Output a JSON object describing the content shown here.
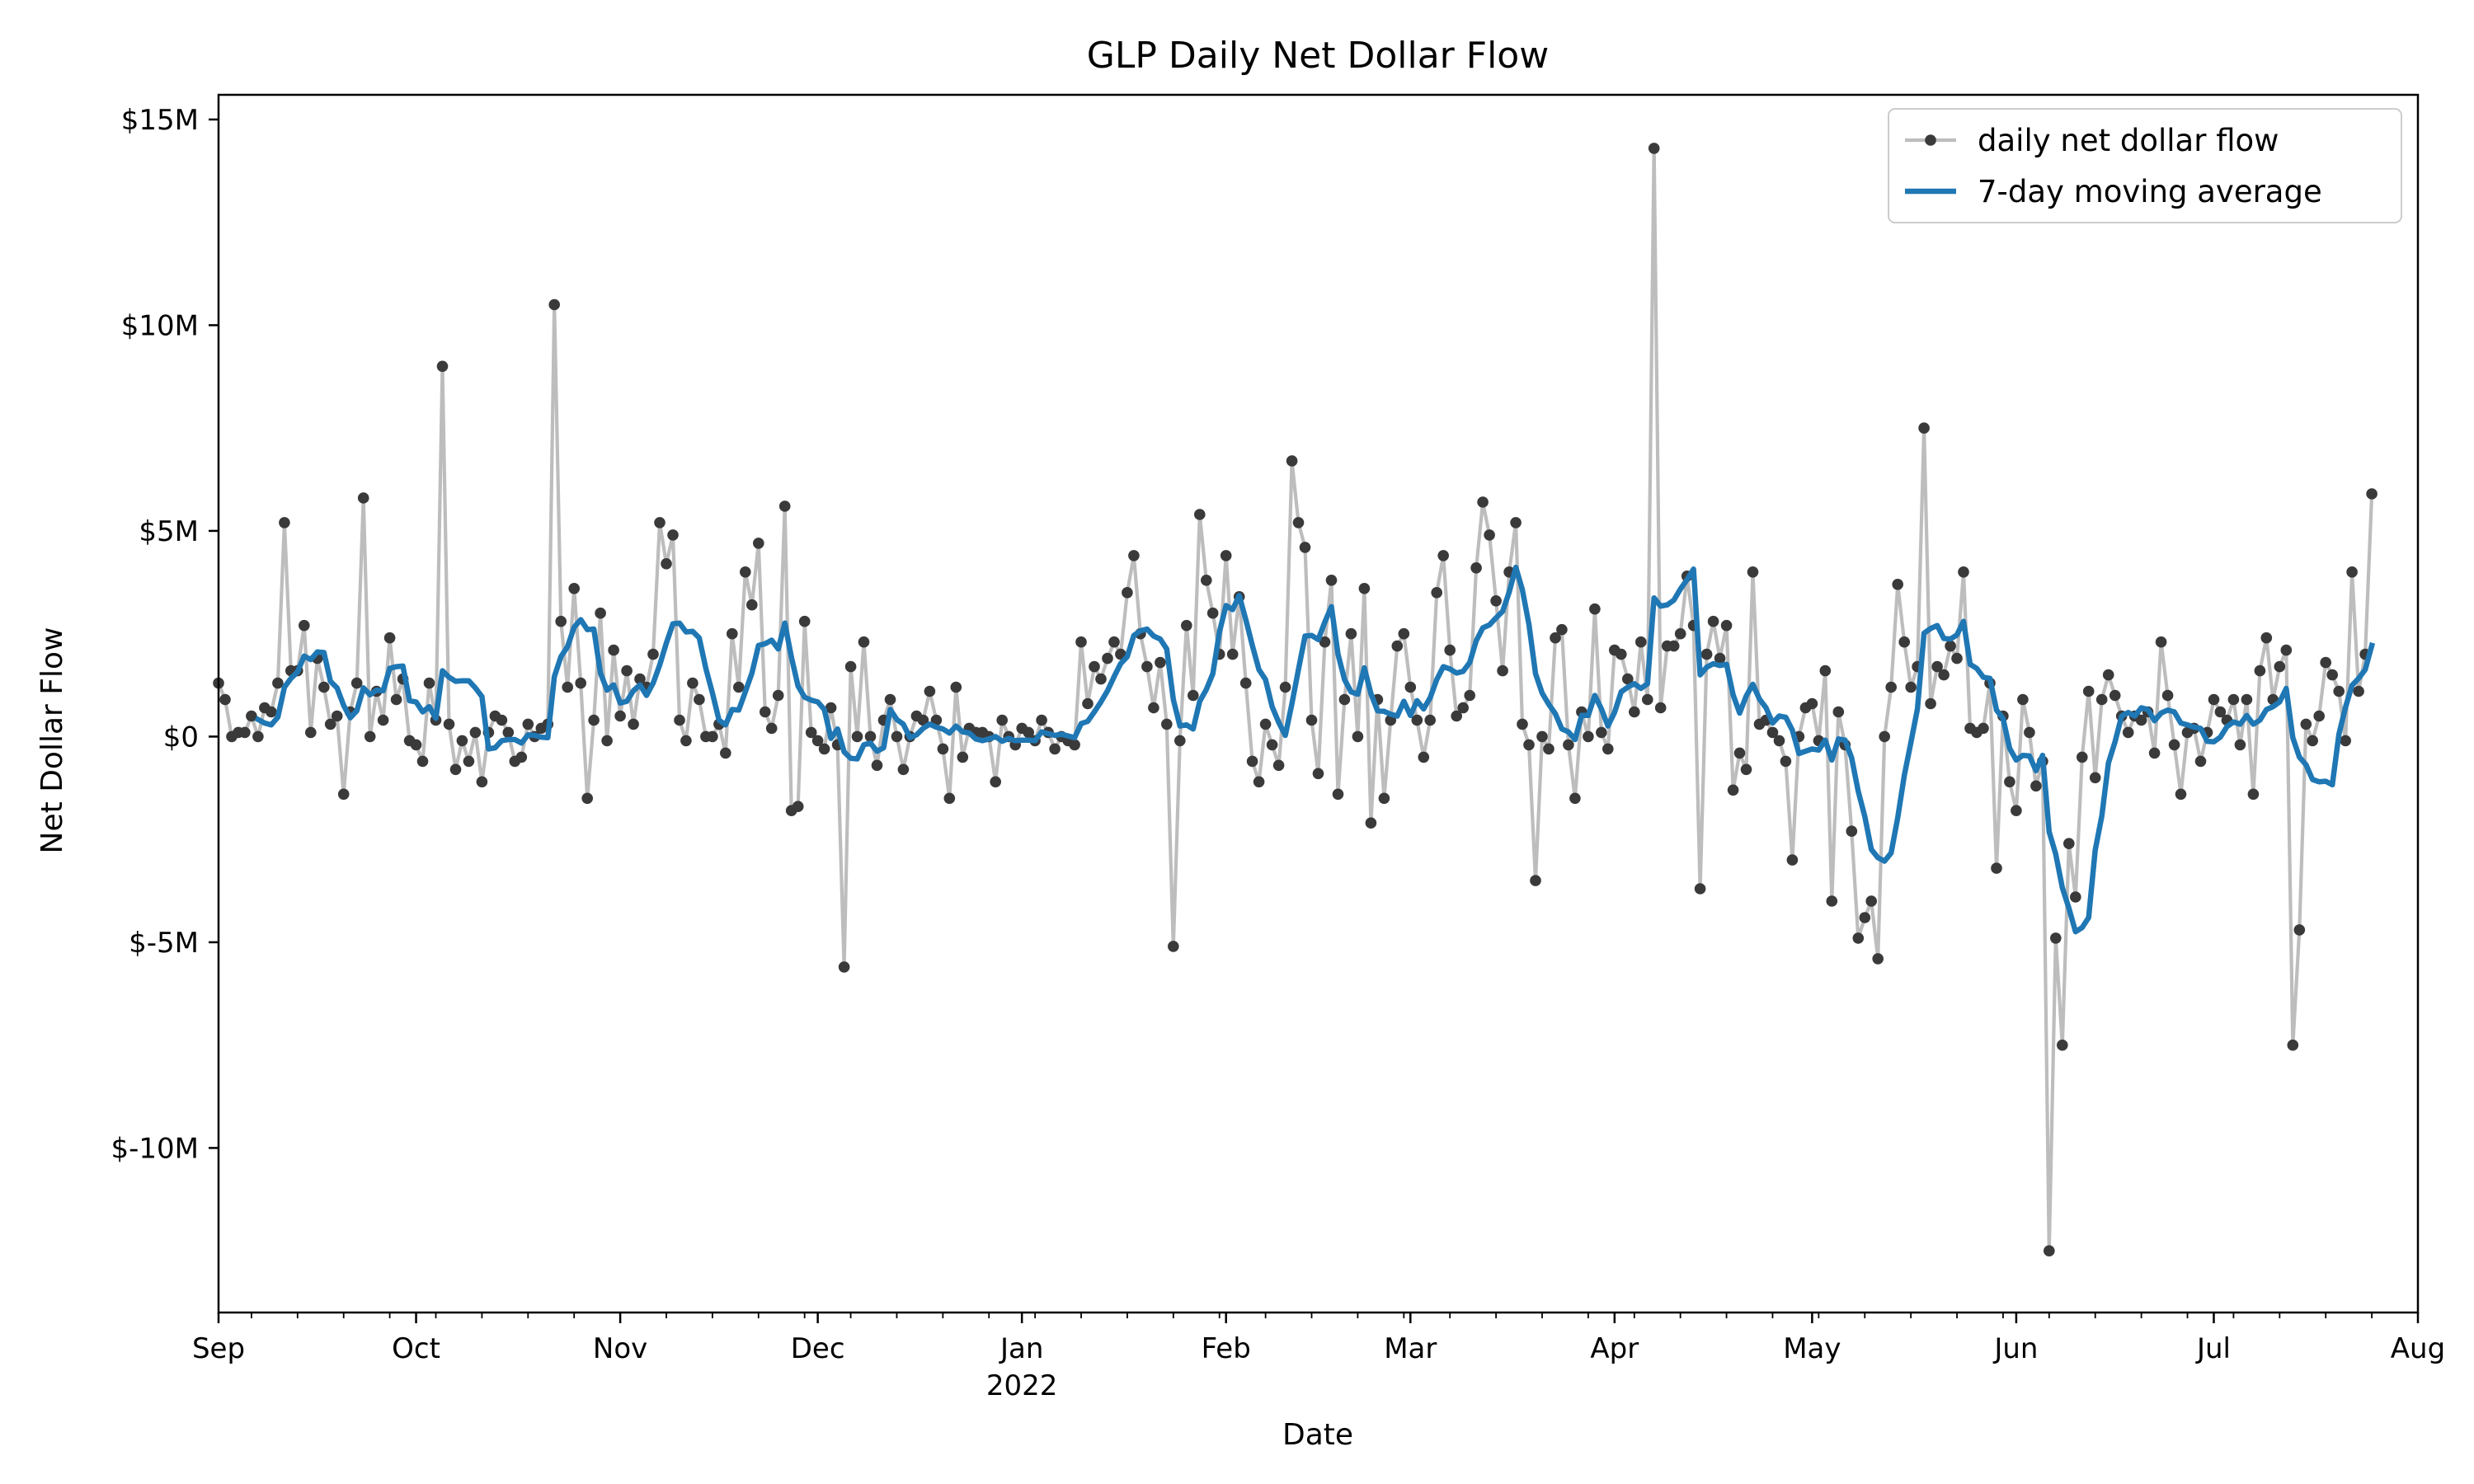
{
  "chart_data": {
    "type": "line",
    "title": "GLP Daily Net Dollar Flow",
    "xlabel": "Date",
    "ylabel": "Net Dollar Flow",
    "x_range": [
      "2021-09-01",
      "2022-08-01"
    ],
    "ylim": [
      -14000000,
      15600000
    ],
    "y_ticks": [
      {
        "value": 15000000,
        "label": "$15M"
      },
      {
        "value": 10000000,
        "label": "$10M"
      },
      {
        "value": 5000000,
        "label": "$5M"
      },
      {
        "value": 0,
        "label": "$0"
      },
      {
        "value": -5000000,
        "label": "$-5M"
      },
      {
        "value": -10000000,
        "label": "$-10M"
      }
    ],
    "x_ticks": [
      {
        "date": "2021-09-01",
        "label": "Sep"
      },
      {
        "date": "2021-10-01",
        "label": "Oct"
      },
      {
        "date": "2021-11-01",
        "label": "Nov"
      },
      {
        "date": "2021-12-01",
        "label": "Dec"
      },
      {
        "date": "2022-01-01",
        "label": "Jan",
        "sublabel": "2022"
      },
      {
        "date": "2022-02-01",
        "label": "Feb"
      },
      {
        "date": "2022-03-01",
        "label": "Mar"
      },
      {
        "date": "2022-04-01",
        "label": "Apr"
      },
      {
        "date": "2022-05-01",
        "label": "May"
      },
      {
        "date": "2022-06-01",
        "label": "Jun"
      },
      {
        "date": "2022-07-01",
        "label": "Jul"
      },
      {
        "date": "2022-08-01",
        "label": "Aug"
      }
    ],
    "grid": false,
    "legend_position": "top-right",
    "series": [
      {
        "name": "daily net dollar flow",
        "color": "#bdbdbd",
        "marker_color": "#3a3a3a",
        "style": "line-with-markers",
        "x_start": "2021-09-01",
        "x_step_days": 1,
        "values": [
          1.3,
          0.9,
          0.0,
          0.1,
          0.1,
          0.5,
          0.0,
          0.7,
          0.6,
          1.3,
          5.2,
          1.6,
          1.6,
          2.7,
          0.1,
          1.9,
          1.2,
          0.3,
          0.5,
          -1.4,
          0.6,
          1.3,
          5.8,
          0.0,
          1.1,
          0.4,
          2.4,
          0.9,
          1.4,
          -0.1,
          -0.2,
          -0.6,
          1.3,
          0.4,
          9.0,
          0.3,
          -0.8,
          -0.1,
          -0.6,
          0.1,
          -1.1,
          0.1,
          0.5,
          0.4,
          0.1,
          -0.6,
          -0.5,
          0.3,
          0.0,
          0.2,
          0.3,
          10.5,
          2.8,
          1.2,
          3.6,
          1.3,
          -1.5,
          0.4,
          3.0,
          -0.1,
          2.1,
          0.5,
          1.6,
          0.3,
          1.4,
          1.2,
          2.0,
          5.2,
          4.2,
          4.9,
          0.4,
          -0.1,
          1.3,
          0.9,
          0.0,
          0.0,
          0.3,
          -0.4,
          2.5,
          1.2,
          4.0,
          3.2,
          4.7,
          0.6,
          0.2,
          1.0,
          5.6,
          -1.8,
          -1.7,
          2.8,
          0.1,
          -0.1,
          -0.3,
          0.7,
          -0.2,
          -5.6,
          1.7,
          0.0,
          2.3,
          0.0,
          -0.7,
          0.4,
          0.9,
          0.0,
          -0.8,
          0.0,
          0.5,
          0.4,
          1.1,
          0.4,
          -0.3,
          -1.5,
          1.2,
          -0.5,
          0.2,
          0.1,
          0.1,
          0.0,
          -1.1,
          0.4,
          0.0,
          -0.2,
          0.2,
          0.1,
          -0.1,
          0.4,
          0.1,
          -0.3,
          0.0,
          -0.1,
          -0.2,
          2.3,
          0.8,
          1.7,
          1.4,
          1.9,
          2.3,
          2.0,
          3.5,
          4.4,
          2.5,
          1.7,
          0.7,
          1.8,
          0.3,
          -5.1,
          -0.1,
          2.7,
          1.0,
          5.4,
          3.8,
          3.0,
          2.0,
          4.4,
          2.0,
          3.4,
          1.3,
          -0.6,
          -1.1,
          0.3,
          -0.2,
          -0.7,
          1.2,
          6.7,
          5.2,
          4.6,
          0.4,
          -0.9,
          2.3,
          3.8,
          -1.4,
          0.9,
          2.5,
          0.0,
          3.6,
          -2.1,
          0.9,
          -1.5,
          0.4,
          2.2,
          2.5,
          1.2,
          0.4,
          -0.5,
          0.4,
          3.5,
          4.4,
          2.1,
          0.5,
          0.7,
          1.0,
          4.1,
          5.7,
          4.9,
          3.3,
          1.6,
          4.0,
          5.2,
          0.3,
          -0.2,
          -3.5,
          0.0,
          -0.3,
          2.4,
          2.6,
          -0.2,
          -1.5,
          0.6,
          0.0,
          3.1,
          0.1,
          -0.3,
          2.1,
          2.0,
          1.4,
          0.6,
          2.3,
          0.9,
          14.3,
          0.7,
          2.2,
          2.2,
          2.5,
          3.9,
          2.7,
          -3.7,
          2.0,
          2.8,
          1.9,
          2.7,
          -1.3,
          -0.4,
          -0.8,
          4.0,
          0.3,
          0.4,
          0.1,
          -0.1,
          -0.6,
          -3.0,
          0.0,
          0.7,
          0.8,
          -0.1,
          1.6,
          -4.0,
          0.6,
          -0.2,
          -2.3,
          -4.9,
          -4.4,
          -4.0,
          -5.4,
          0.0,
          1.2,
          3.7,
          2.3,
          1.2,
          1.7,
          7.5,
          0.8,
          1.7,
          1.5,
          2.2,
          1.9,
          4.0,
          0.2,
          0.1,
          0.2,
          1.3,
          -3.2,
          0.5,
          -1.1,
          -1.8,
          0.9,
          0.1,
          -1.2,
          -0.6,
          -12.5,
          -4.9,
          -7.5,
          -2.6,
          -3.9,
          -0.5,
          1.1,
          -1.0,
          0.9,
          1.5,
          1.0,
          0.5,
          0.1,
          0.5,
          0.4,
          0.6,
          -0.4,
          2.3,
          1.0,
          -0.2,
          -1.4,
          0.1,
          0.2,
          -0.6,
          0.1,
          0.9,
          0.6,
          0.4,
          0.9,
          -0.2,
          0.9,
          -1.4,
          1.6,
          2.4,
          0.9,
          1.7,
          2.1,
          -7.5,
          -4.7,
          0.3,
          -0.1,
          0.5,
          1.8,
          1.5,
          1.1,
          -0.1,
          4.0,
          1.1,
          2.0,
          5.9
        ]
      },
      {
        "name": "7-day moving average",
        "color": "#1f77b4",
        "style": "line",
        "window_days": 7,
        "start_offset_days": 6
      }
    ],
    "value_unit_multiplier": 1000000
  }
}
